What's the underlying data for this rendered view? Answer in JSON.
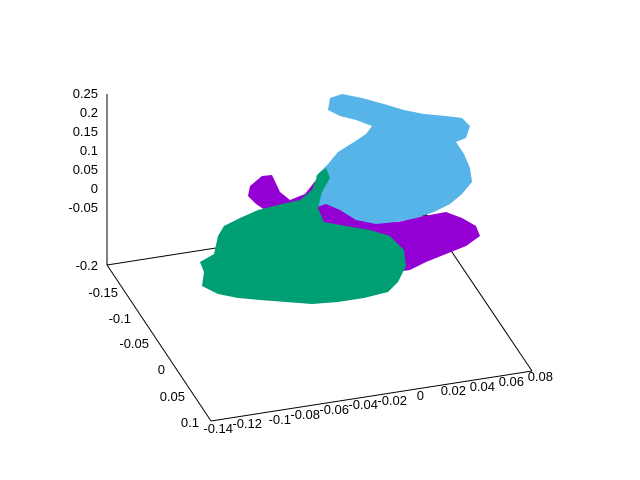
{
  "chart_data": {
    "type": "scatter",
    "title": "",
    "xlabel": "",
    "ylabel": "",
    "zlabel": "",
    "grid": false,
    "legend": false,
    "x_ticks": [
      "-0.14",
      "-0.12",
      "-0.1",
      "-0.08",
      "-0.06",
      "-0.04",
      "-0.02",
      "0",
      "0.02",
      "0.04",
      "0.06",
      "0.08"
    ],
    "y_ticks": [
      "-0.2",
      "-0.15",
      "-0.1",
      "-0.05",
      "0",
      "0.05",
      "0.1"
    ],
    "z_ticks": [
      "-0.05",
      "0",
      "0.05",
      "0.1",
      "0.15",
      "0.2",
      "0.25"
    ],
    "series": [
      {
        "color": "#9400d3"
      },
      {
        "color": "#56b4e9"
      },
      {
        "color": "#009e73"
      }
    ]
  }
}
